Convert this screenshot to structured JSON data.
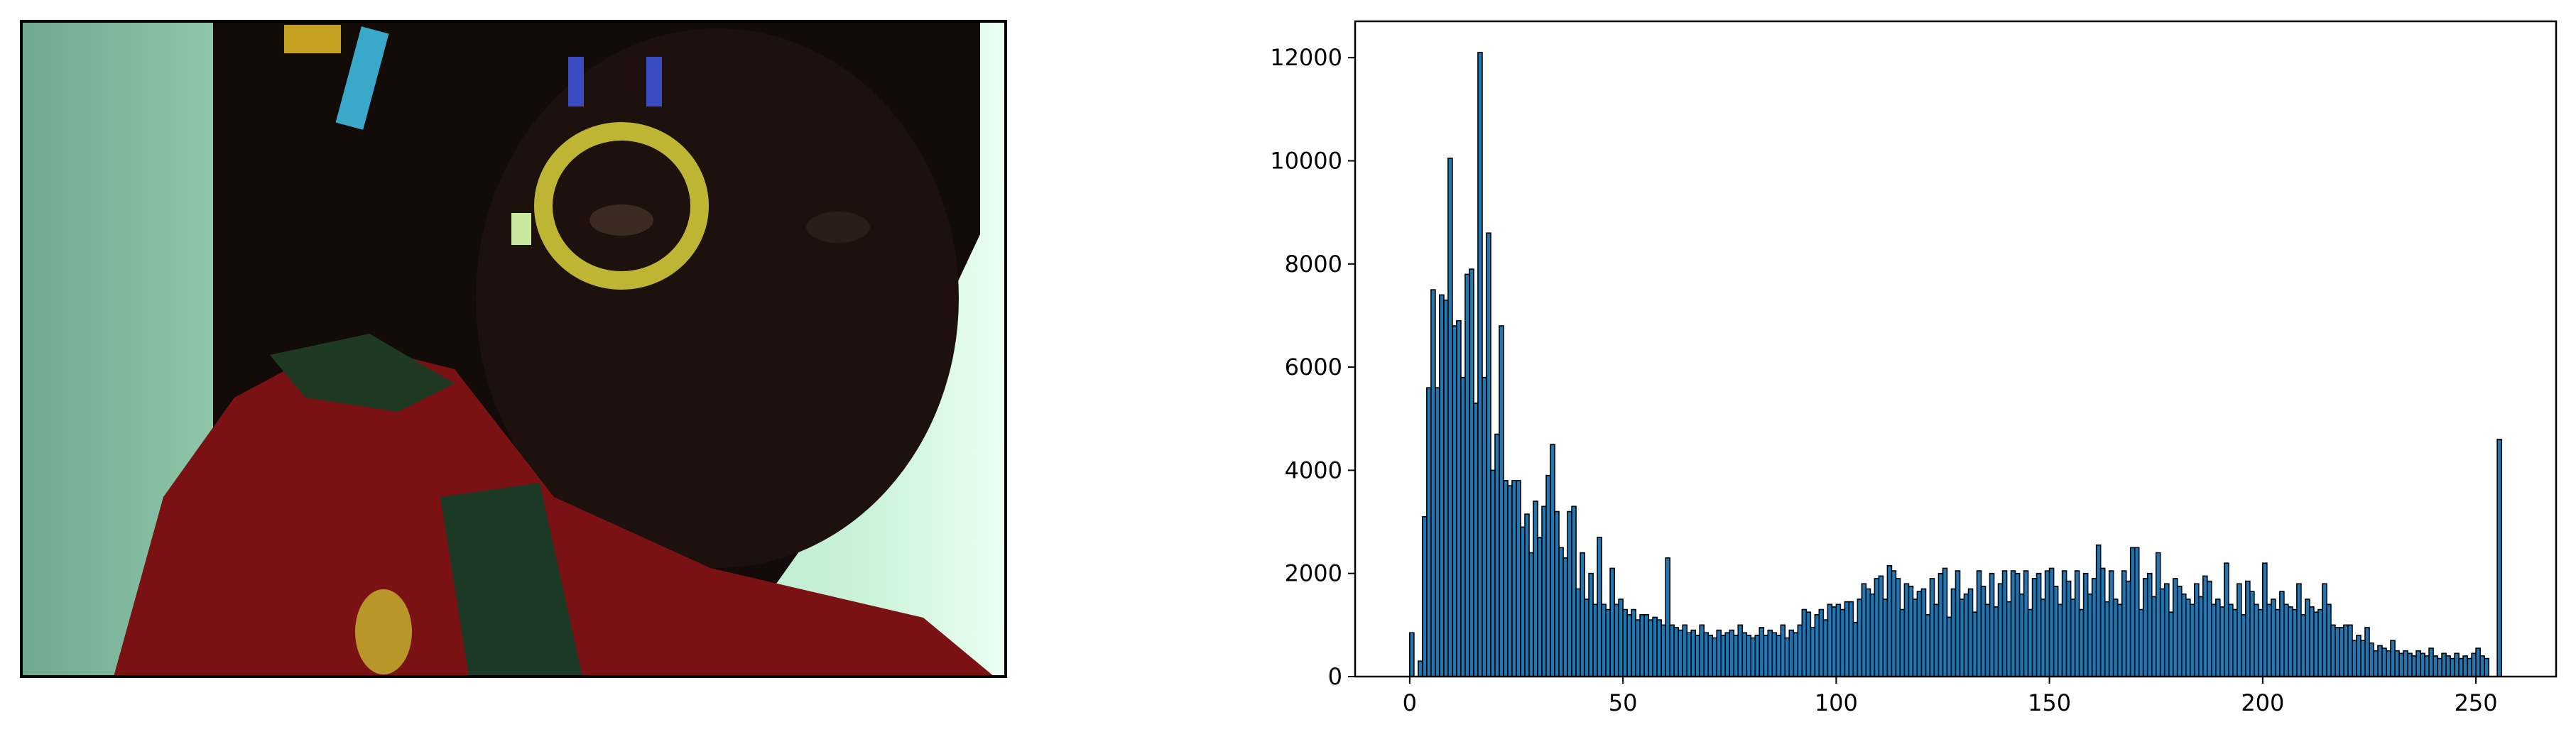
{
  "chart_data": {
    "type": "histogram",
    "bins": [
      0,
      1,
      2,
      3,
      4,
      5,
      6,
      7,
      8,
      9,
      10,
      11,
      12,
      13,
      14,
      15,
      16,
      17,
      18,
      19,
      20,
      21,
      22,
      23,
      24,
      25,
      26,
      27,
      28,
      29,
      30,
      31,
      32,
      33,
      34,
      35,
      36,
      37,
      38,
      39,
      40,
      41,
      42,
      43,
      44,
      45,
      46,
      47,
      48,
      49,
      50,
      51,
      52,
      53,
      54,
      55,
      56,
      57,
      58,
      59,
      60,
      61,
      62,
      63,
      64,
      65,
      66,
      67,
      68,
      69,
      70,
      71,
      72,
      73,
      74,
      75,
      76,
      77,
      78,
      79,
      80,
      81,
      82,
      83,
      84,
      85,
      86,
      87,
      88,
      89,
      90,
      91,
      92,
      93,
      94,
      95,
      96,
      97,
      98,
      99,
      100,
      101,
      102,
      103,
      104,
      105,
      106,
      107,
      108,
      109,
      110,
      111,
      112,
      113,
      114,
      115,
      116,
      117,
      118,
      119,
      120,
      121,
      122,
      123,
      124,
      125,
      126,
      127,
      128,
      129,
      130,
      131,
      132,
      133,
      134,
      135,
      136,
      137,
      138,
      139,
      140,
      141,
      142,
      143,
      144,
      145,
      146,
      147,
      148,
      149,
      150,
      151,
      152,
      153,
      154,
      155,
      156,
      157,
      158,
      159,
      160,
      161,
      162,
      163,
      164,
      165,
      166,
      167,
      168,
      169,
      170,
      171,
      172,
      173,
      174,
      175,
      176,
      177,
      178,
      179,
      180,
      181,
      182,
      183,
      184,
      185,
      186,
      187,
      188,
      189,
      190,
      191,
      192,
      193,
      194,
      195,
      196,
      197,
      198,
      199,
      200,
      201,
      202,
      203,
      204,
      205,
      206,
      207,
      208,
      209,
      210,
      211,
      212,
      213,
      214,
      215,
      216,
      217,
      218,
      219,
      220,
      221,
      222,
      223,
      224,
      225,
      226,
      227,
      228,
      229,
      230,
      231,
      232,
      233,
      234,
      235,
      236,
      237,
      238,
      239,
      240,
      241,
      242,
      243,
      244,
      245,
      246,
      247,
      248,
      249,
      250,
      251,
      252,
      253,
      254,
      255,
      256
    ],
    "values": [
      850,
      0,
      300,
      3100,
      5600,
      7500,
      5600,
      7400,
      7300,
      10050,
      6800,
      6900,
      5800,
      7800,
      7900,
      5300,
      12100,
      5800,
      8600,
      4000,
      4700,
      6800,
      3800,
      3700,
      3800,
      3800,
      2900,
      3150,
      2400,
      3400,
      2700,
      3300,
      3900,
      4500,
      3200,
      2500,
      2300,
      3200,
      3300,
      1700,
      2400,
      1500,
      2000,
      1400,
      2700,
      1400,
      1300,
      2100,
      1400,
      1500,
      1300,
      1200,
      1300,
      1100,
      1200,
      1200,
      1100,
      1150,
      1100,
      1000,
      2300,
      1000,
      950,
      900,
      1000,
      850,
      900,
      800,
      1000,
      850,
      800,
      750,
      900,
      800,
      850,
      900,
      800,
      1000,
      850,
      800,
      750,
      800,
      950,
      800,
      900,
      850,
      800,
      1000,
      750,
      900,
      850,
      1000,
      1300,
      1250,
      950,
      1200,
      1300,
      1100,
      1400,
      1350,
      1400,
      1300,
      1450,
      1450,
      1050,
      1500,
      1800,
      1700,
      1600,
      1900,
      1950,
      1500,
      2150,
      2050,
      1900,
      1300,
      1800,
      1750,
      1500,
      1650,
      1700,
      1200,
      1900,
      1400,
      2000,
      2100,
      1150,
      1700,
      2050,
      1500,
      1600,
      1700,
      1250,
      2050,
      1750,
      1400,
      2000,
      1350,
      1800,
      2050,
      1450,
      2050,
      2000,
      1600,
      2050,
      1300,
      1900,
      2000,
      1500,
      2050,
      2100,
      1750,
      1400,
      2050,
      1850,
      1500,
      2050,
      1300,
      2000,
      1600,
      1900,
      2550,
      2100,
      1450,
      2050,
      1500,
      1400,
      2050,
      1850,
      2500,
      2500,
      1300,
      1900,
      2000,
      1550,
      2400,
      1700,
      1800,
      1250,
      1900,
      1750,
      1600,
      1500,
      1400,
      1800,
      1550,
      1950,
      1850,
      1400,
      1500,
      1350,
      2200,
      1400,
      1300,
      1800,
      1200,
      1850,
      1650,
      1400,
      1300,
      2200,
      1400,
      1500,
      1300,
      1650,
      1400,
      1350,
      1300,
      1800,
      1200,
      1500,
      1350,
      1250,
      1300,
      1800,
      1400,
      1000,
      950,
      950,
      1000,
      1000,
      700,
      800,
      700,
      950,
      650,
      500,
      600,
      550,
      500,
      700,
      500,
      450,
      500,
      450,
      400,
      500,
      450,
      400,
      550,
      400,
      350,
      450,
      400,
      350,
      450,
      350,
      400,
      350,
      450,
      550,
      400,
      350,
      0,
      0,
      4600
    ],
    "color": "#1f77b4",
    "xlim": [
      -12.8,
      268.8
    ],
    "xticks": [
      0,
      50,
      100,
      150,
      200,
      250
    ],
    "ylim": [
      0,
      12705
    ],
    "yticks": [
      0,
      2000,
      4000,
      6000,
      8000,
      10000,
      12000
    ]
  }
}
